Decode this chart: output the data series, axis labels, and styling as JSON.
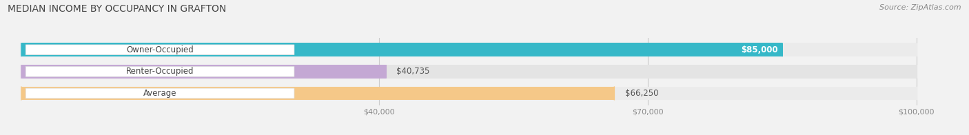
{
  "title": "MEDIAN INCOME BY OCCUPANCY IN GRAFTON",
  "source": "Source: ZipAtlas.com",
  "categories": [
    "Owner-Occupied",
    "Renter-Occupied",
    "Average"
  ],
  "values": [
    85000,
    40735,
    66250
  ],
  "value_labels": [
    "$85,000",
    "$40,735",
    "$66,250"
  ],
  "bar_colors": [
    "#36b8c8",
    "#c4a8d4",
    "#f5c888"
  ],
  "bar_bg_color": "#e8e8e8",
  "x_ticks": [
    40000,
    70000,
    100000
  ],
  "x_tick_labels": [
    "$40,000",
    "$70,000",
    "$100,000"
  ],
  "x_max": 100000,
  "title_fontsize": 10,
  "source_fontsize": 8,
  "label_fontsize": 8.5,
  "value_fontsize": 8.5,
  "tick_fontsize": 8,
  "background_color": "#f2f2f2",
  "bar_bg_stripe_colors": [
    "#ebebeb",
    "#e4e4e4"
  ]
}
